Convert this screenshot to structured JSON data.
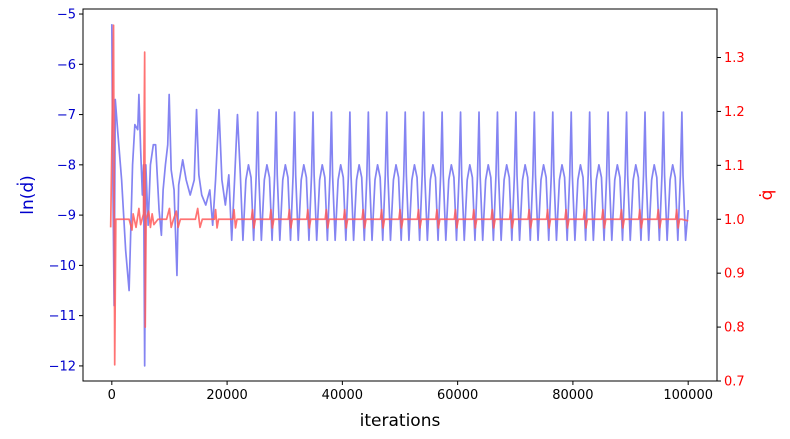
{
  "chart_data": {
    "type": "line",
    "xlabel": "iterations",
    "ylabel_left": "ln(ḋ)",
    "ylabel_right": "q̇",
    "colors": {
      "left_axis": "#0000cc",
      "right_axis": "#ff0000",
      "left_series": "#6e6ef0",
      "right_series": "#ff5a5a"
    },
    "xlim": [
      -5000,
      105000
    ],
    "ylim_left": [
      -12.3,
      -4.9
    ],
    "ylim_right": [
      0.7,
      1.39
    ],
    "x_ticks": [
      0,
      20000,
      40000,
      60000,
      80000,
      100000
    ],
    "x_tick_labels": [
      "0",
      "20000",
      "40000",
      "60000",
      "80000",
      "100000"
    ],
    "y_left_ticks": [
      -12,
      -11,
      -10,
      -9,
      -8,
      -7,
      -6,
      -5
    ],
    "y_left_tick_labels": [
      "−12",
      "−11",
      "−10",
      "−9",
      "−8",
      "−7",
      "−6",
      "−5"
    ],
    "y_right_ticks": [
      0.7,
      0.8,
      0.9,
      1.0,
      1.1,
      1.2,
      1.3
    ],
    "y_right_tick_labels": [
      "0.7",
      "0.8",
      "0.9",
      "1.0",
      "1.1",
      "1.2",
      "1.3"
    ],
    "series": [
      {
        "axis": "left",
        "points": [
          [
            0,
            -5.2
          ],
          [
            150,
            -7.9
          ],
          [
            400,
            -10.8
          ],
          [
            600,
            -6.7
          ],
          [
            1000,
            -7.3
          ],
          [
            1700,
            -8.3
          ],
          [
            2400,
            -9.7
          ],
          [
            3000,
            -10.5
          ],
          [
            3600,
            -8.0
          ],
          [
            4000,
            -7.2
          ],
          [
            4500,
            -7.3
          ],
          [
            4700,
            -6.6
          ],
          [
            5000,
            -7.7
          ],
          [
            5300,
            -8.6
          ],
          [
            5500,
            -8.0
          ],
          [
            5700,
            -12.0
          ],
          [
            5900,
            -8.0
          ],
          [
            6300,
            -9.2
          ],
          [
            6700,
            -8.0
          ],
          [
            7200,
            -7.6
          ],
          [
            7600,
            -7.6
          ],
          [
            8200,
            -8.9
          ],
          [
            8600,
            -9.4
          ],
          [
            8900,
            -8.5
          ],
          [
            9300,
            -8.0
          ],
          [
            9700,
            -7.6
          ],
          [
            9950,
            -6.6
          ],
          [
            10300,
            -8.1
          ],
          [
            10800,
            -8.5
          ],
          [
            11300,
            -10.2
          ],
          [
            11600,
            -8.4
          ],
          [
            12300,
            -7.9
          ],
          [
            12900,
            -8.3
          ],
          [
            13600,
            -8.6
          ],
          [
            14300,
            -8.3
          ],
          [
            14700,
            -6.9
          ],
          [
            15100,
            -8.2
          ],
          [
            15600,
            -8.6
          ],
          [
            16300,
            -8.8
          ],
          [
            17000,
            -8.5
          ],
          [
            17500,
            -9.2
          ],
          [
            18000,
            -8.3
          ],
          [
            18600,
            -6.9
          ],
          [
            19100,
            -8.3
          ],
          [
            19700,
            -8.8
          ],
          [
            20300,
            -8.2
          ],
          [
            20800,
            -9.5
          ],
          [
            21300,
            -8.3
          ],
          [
            21800,
            -7.0
          ],
          [
            22300,
            -8.2
          ]
        ],
        "cycle": {
          "start": 22300,
          "end": 100000,
          "period": 3200,
          "shape": [
            [
              0.0,
              -8.2
            ],
            [
              0.14,
              -9.5
            ],
            [
              0.3,
              -8.3
            ],
            [
              0.44,
              -8.0
            ],
            [
              0.58,
              -8.25
            ],
            [
              0.72,
              -9.5
            ],
            [
              0.86,
              -8.2
            ],
            [
              0.94,
              -6.95
            ],
            [
              1.0,
              -8.2
            ]
          ],
          "end_value": -8.9
        }
      },
      {
        "axis": "right",
        "points": [
          [
            -200,
            0.985
          ],
          [
            300,
            1.36
          ],
          [
            500,
            0.73
          ],
          [
            700,
            1.0
          ],
          [
            3000,
            1.0
          ],
          [
            3500,
            0.98
          ],
          [
            3700,
            1.01
          ],
          [
            4200,
            0.985
          ],
          [
            4700,
            1.02
          ],
          [
            5000,
            0.99
          ],
          [
            5500,
            1.01
          ],
          [
            5700,
            1.31
          ],
          [
            5800,
            0.8
          ],
          [
            5950,
            1.0
          ],
          [
            6400,
            1.015
          ],
          [
            6700,
            0.985
          ],
          [
            7000,
            1.01
          ],
          [
            7300,
            0.99
          ],
          [
            8000,
            1.0
          ],
          [
            9500,
            1.0
          ],
          [
            10000,
            1.02
          ],
          [
            10300,
            0.985
          ],
          [
            10700,
            1.0
          ],
          [
            11200,
            1.015
          ],
          [
            11500,
            0.985
          ],
          [
            11900,
            1.0
          ],
          [
            14500,
            1.0
          ],
          [
            14900,
            1.02
          ],
          [
            15300,
            0.985
          ],
          [
            15700,
            1.0
          ]
        ],
        "cycle": {
          "start": 15700,
          "end": 100000,
          "period": 3200,
          "shape": [
            [
              0.0,
              1.0
            ],
            [
              0.66,
              1.0
            ],
            [
              0.72,
              1.018
            ],
            [
              0.8,
              0.984
            ],
            [
              0.88,
              1.0
            ],
            [
              1.0,
              1.0
            ]
          ],
          "end_value": 0.997
        }
      }
    ]
  }
}
